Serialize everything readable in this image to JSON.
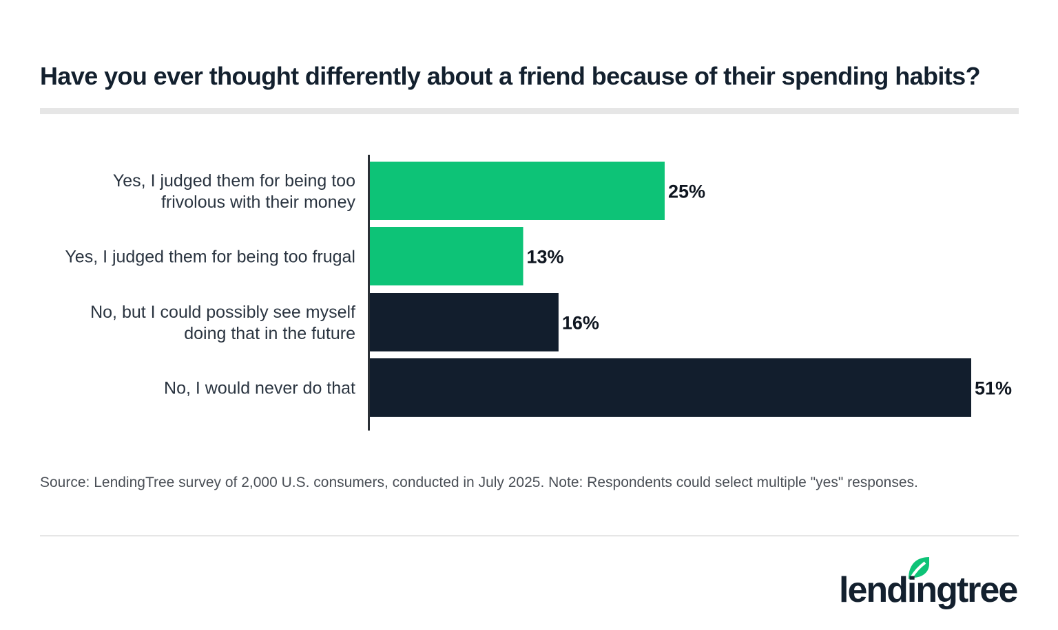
{
  "chart_data": {
    "type": "bar",
    "orientation": "horizontal",
    "title": "Have you ever thought differently about a friend because of their spending habits?",
    "categories": [
      [
        "Yes, I judged them for being too",
        "frivolous with their money"
      ],
      [
        "Yes, I judged them for being too frugal"
      ],
      [
        "No, but I could possibly see myself",
        "doing that in the future"
      ],
      [
        "No, I would never do that"
      ]
    ],
    "values": [
      25,
      13,
      16,
      51
    ],
    "value_labels": [
      "25%",
      "13%",
      "16%",
      "51%"
    ],
    "bar_colors": [
      "#0dc377",
      "#0dc377",
      "#121e2d",
      "#121e2d"
    ],
    "xlim": [
      0,
      51
    ],
    "grid": false,
    "xlabel": "",
    "ylabel": ""
  },
  "source": "Source: LendingTree survey of 2,000 U.S. consumers, conducted in July 2025. Note: Respondents could select multiple \"yes\" responses.",
  "logo": {
    "text": "lendingtree",
    "icon": "leaf-icon",
    "color": "#0dc377"
  }
}
